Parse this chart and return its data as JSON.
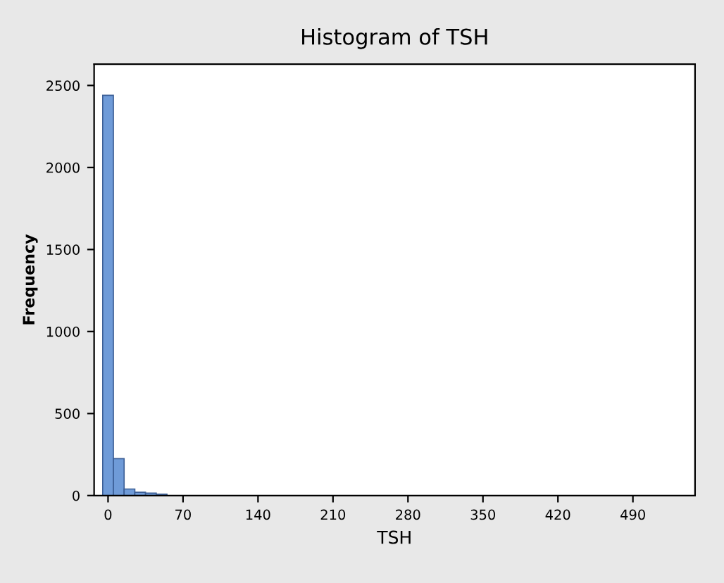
{
  "chart_data": {
    "type": "histogram",
    "title": "Histogram of TSH",
    "xlabel": "TSH",
    "ylabel": "Frequency",
    "bins": [
      -5,
      5,
      15,
      25,
      35,
      45,
      55
    ],
    "values": [
      2440,
      225,
      40,
      20,
      15,
      8
    ],
    "color": "#6f9bd8",
    "xlim": [
      -13,
      548
    ],
    "ylim": [
      0,
      2630
    ],
    "xticks": [
      0,
      70,
      140,
      210,
      280,
      350,
      420,
      490
    ],
    "yticks": [
      0,
      500,
      1000,
      1500,
      2000,
      2500
    ],
    "grid": false
  }
}
